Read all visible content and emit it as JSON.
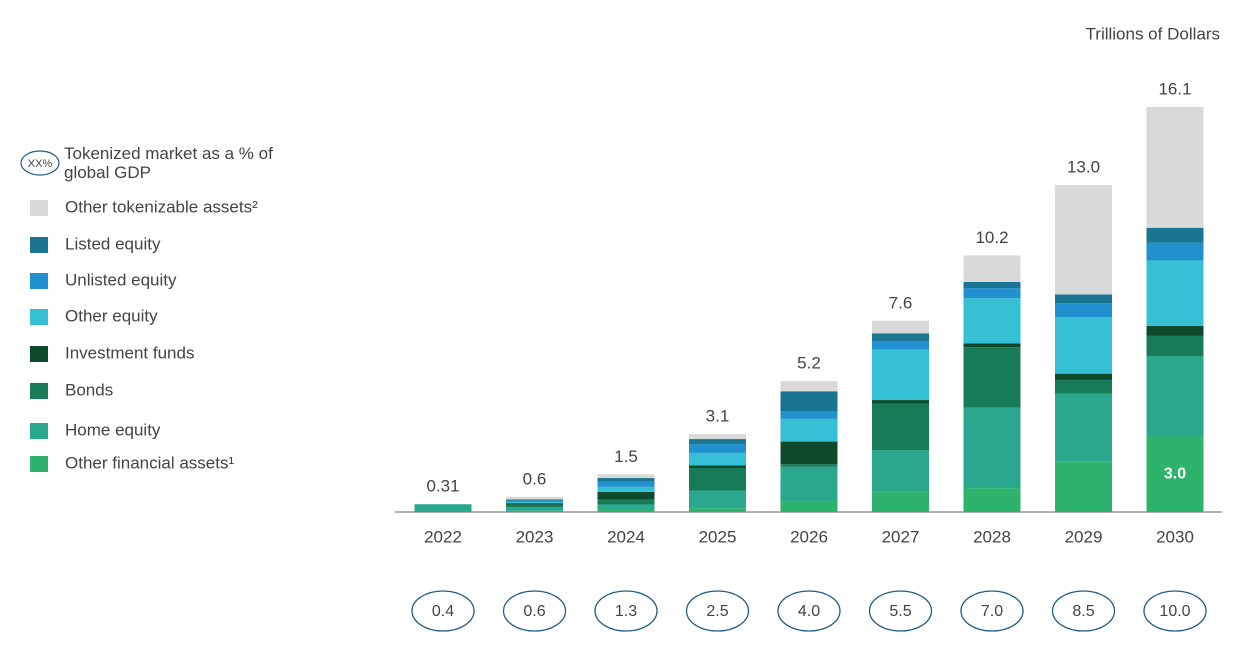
{
  "chart_data": {
    "type": "stacked_bar",
    "unit_label": "Trillions of Dollars",
    "legend_title": "Tokenized market as a % of global GDP",
    "legend_icon": "XX%",
    "categories": [
      "2022",
      "2023",
      "2024",
      "2025",
      "2026",
      "2027",
      "2028",
      "2029",
      "2030"
    ],
    "series": [
      {
        "name": "Other financial assets¹",
        "color": "#2db36b",
        "values": [
          0,
          0.05,
          0.1,
          0.15,
          0.4,
          0.8,
          0.95,
          2.0,
          3.0
        ],
        "value_labels": [
          null,
          null,
          null,
          null,
          null,
          null,
          null,
          null,
          "3.0"
        ]
      },
      {
        "name": "Home equity",
        "color": "#2aa88e",
        "values": [
          0.31,
          0.15,
          0.2,
          0.7,
          1.4,
          1.65,
          3.2,
          2.7,
          3.2
        ]
      },
      {
        "name": "Bonds",
        "color": "#177b57",
        "values": [
          0,
          0.1,
          0.2,
          0.9,
          0.1,
          1.85,
          2.4,
          0.55,
          0.8
        ]
      },
      {
        "name": "Investment funds",
        "color": "#0d4a2c",
        "values": [
          0,
          0.05,
          0.3,
          0.1,
          0.9,
          0.15,
          0.15,
          0.25,
          0.4
        ]
      },
      {
        "name": "Other equity",
        "color": "#35c0d6",
        "values": [
          0,
          0.05,
          0.2,
          0.5,
          0.9,
          2.0,
          1.8,
          2.25,
          2.6
        ]
      },
      {
        "name": "Unlisted equity",
        "color": "#2190cf",
        "values": [
          0,
          0.05,
          0.2,
          0.35,
          0.3,
          0.35,
          0.4,
          0.55,
          0.7
        ]
      },
      {
        "name": "Listed equity",
        "color": "#1a7593",
        "values": [
          0,
          0.05,
          0.15,
          0.2,
          0.8,
          0.3,
          0.25,
          0.35,
          0.6
        ]
      },
      {
        "name": "Other tokenizable assets²",
        "color": "#d9d9d9",
        "values": [
          0,
          0.1,
          0.15,
          0.2,
          0.4,
          0.5,
          1.05,
          4.35,
          4.8
        ]
      }
    ],
    "totals": [
      0.31,
      0.6,
      1.5,
      3.1,
      5.2,
      7.6,
      10.2,
      13.0,
      16.1
    ],
    "total_labels": [
      "0.31",
      "0.6",
      "1.5",
      "3.1",
      "5.2",
      "7.6",
      "10.2",
      "13.0",
      "16.1"
    ],
    "gdp_share": [
      "0.4",
      "0.6",
      "1.3",
      "2.5",
      "4.0",
      "5.5",
      "7.0",
      "8.5",
      "10.0"
    ]
  }
}
